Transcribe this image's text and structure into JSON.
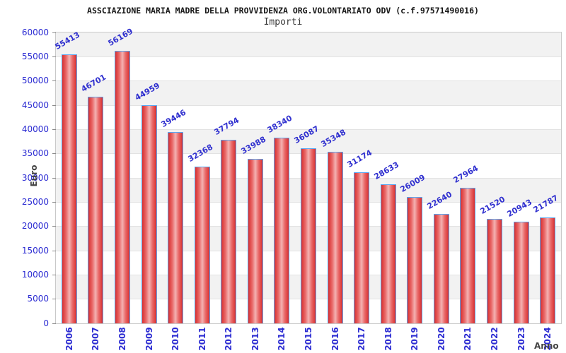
{
  "chart_data": {
    "type": "bar",
    "title": "ASSCIAZIONE MARIA MADRE DELLA PROVVIDENZA ORG.VOLONTARIATO ODV (c.f.97571490016)",
    "subtitle": "Importi",
    "xlabel": "Anno",
    "ylabel": "Euro",
    "categories": [
      "2006",
      "2007",
      "2008",
      "2009",
      "2010",
      "2011",
      "2012",
      "2013",
      "2014",
      "2015",
      "2016",
      "2017",
      "2018",
      "2019",
      "2020",
      "2021",
      "2022",
      "2023",
      "2024"
    ],
    "values": [
      55413,
      46701,
      56169,
      44959,
      39446,
      32368,
      37794,
      33988,
      38340,
      36087,
      35348,
      31174,
      28633,
      26009,
      22640,
      27964,
      21520,
      20943,
      21787
    ],
    "ylim": [
      0,
      60000
    ],
    "ytick_step": 5000,
    "yticks": [
      0,
      5000,
      10000,
      15000,
      20000,
      25000,
      30000,
      35000,
      40000,
      45000,
      50000,
      55000,
      60000
    ],
    "legend": null,
    "grid": "horizontal-bands",
    "colors": {
      "bar_fill_edge": "#d82f2f",
      "bar_fill_center": "#f4b2b2",
      "bar_border": "#58a7f2",
      "axis_label_blue": "#2b2bd2",
      "value_label_blue": "#3030cf",
      "band_gray": "#f2f2f2",
      "band_white": "#ffffff",
      "axis_title_gray": "#444444",
      "title_black": "#161616"
    }
  }
}
